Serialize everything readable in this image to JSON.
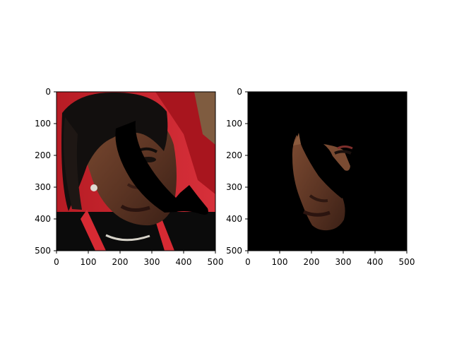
{
  "figure": {
    "background": "#ffffff",
    "panels": [
      {
        "name": "original-image-panel",
        "x_ticks": [
          "0",
          "100",
          "200",
          "300",
          "400",
          "500"
        ],
        "y_ticks": [
          "0",
          "100",
          "200",
          "300",
          "400",
          "500"
        ],
        "content": "portrait photo with a black curved occlusion mask over the face"
      },
      {
        "name": "masked-face-panel",
        "x_ticks": [
          "0",
          "100",
          "200",
          "300",
          "400",
          "500"
        ],
        "y_ticks": [
          "0",
          "100",
          "200",
          "300",
          "400",
          "500"
        ],
        "content": "face-only segmentation on a black background with the same occlusion"
      }
    ]
  },
  "colors": {
    "red_background": "#c8232a",
    "skin": "#6b3f2a",
    "hair": "#120f0e",
    "mask": "#000000",
    "jacket": "#0b0b0b",
    "collar_red": "#d62a33",
    "necklace": "#d7d3c9"
  }
}
